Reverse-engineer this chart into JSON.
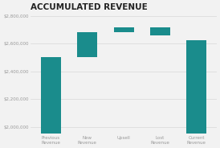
{
  "title": "ACCUMULATED REVENUE",
  "title_fontsize": 7.5,
  "categories": [
    "Previous\nRevenue",
    "New\nRevenue",
    "Upsell",
    "Lost\nRevenue",
    "Current\nRevenue"
  ],
  "bar_bottoms": [
    1950000,
    2500000,
    2680000,
    2660000,
    1950000
  ],
  "bar_tops": [
    2500000,
    2680000,
    2715000,
    2715000,
    2625000
  ],
  "bar_colors": [
    "#1a8c8c",
    "#1a8c8c",
    "#1a8c8c",
    "#1a8c8c",
    "#1a8c8c"
  ],
  "ylim": [
    1950000,
    2820000
  ],
  "yticks": [
    2000000,
    2200000,
    2400000,
    2600000,
    2800000
  ],
  "ytick_labels": [
    "$2,000,000",
    "$2,200,000",
    "$2,400,000",
    "$2,600,000",
    "$2,800,000"
  ],
  "background_color": "#f2f2f2",
  "grid_color": "#d8d8d8",
  "tick_color": "#999999",
  "title_color": "#222222",
  "bar_width": 0.55
}
